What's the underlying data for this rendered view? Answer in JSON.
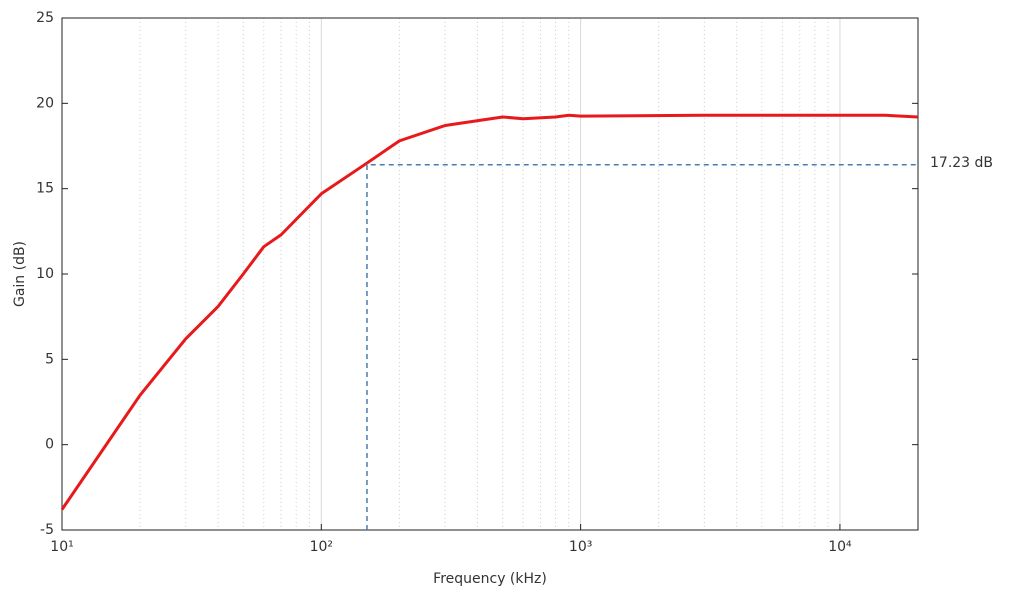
{
  "chart_data": {
    "type": "line",
    "xlabel": "Frequency (kHz)",
    "ylabel": "Gain (dB)",
    "x": [
      10,
      20,
      30,
      40,
      50,
      60,
      70,
      80,
      100,
      150,
      200,
      300,
      500,
      600,
      800,
      900,
      1000,
      3000,
      10000,
      15000,
      20000
    ],
    "series": [
      {
        "name": "Gain",
        "color": "#e8191a",
        "values": [
          -3.8,
          2.9,
          6.2,
          8.1,
          10.0,
          11.6,
          12.3,
          13.2,
          14.7,
          16.5,
          17.8,
          18.7,
          19.2,
          19.1,
          19.2,
          19.3,
          19.25,
          19.3,
          19.3,
          19.3,
          19.2
        ]
      }
    ],
    "xscale": "log",
    "xlim": [
      10,
      20000
    ],
    "ylim": [
      -5,
      25
    ],
    "xticks": [
      {
        "value": 10,
        "label": "10¹"
      },
      {
        "value": 100,
        "label": "10²"
      },
      {
        "value": 1000,
        "label": "10³"
      },
      {
        "value": 10000,
        "label": "10⁴"
      }
    ],
    "xminor": [
      20,
      30,
      40,
      50,
      60,
      70,
      80,
      90,
      200,
      300,
      400,
      500,
      600,
      700,
      800,
      900,
      2000,
      3000,
      4000,
      5000,
      6000,
      7000,
      8000,
      9000
    ],
    "yticks": [
      -5,
      0,
      5,
      10,
      15,
      20,
      25
    ],
    "grid": true,
    "reference": {
      "x": 150,
      "y": 16.4,
      "color": "#4a7bb0"
    },
    "annotation": "17.23 dB"
  }
}
